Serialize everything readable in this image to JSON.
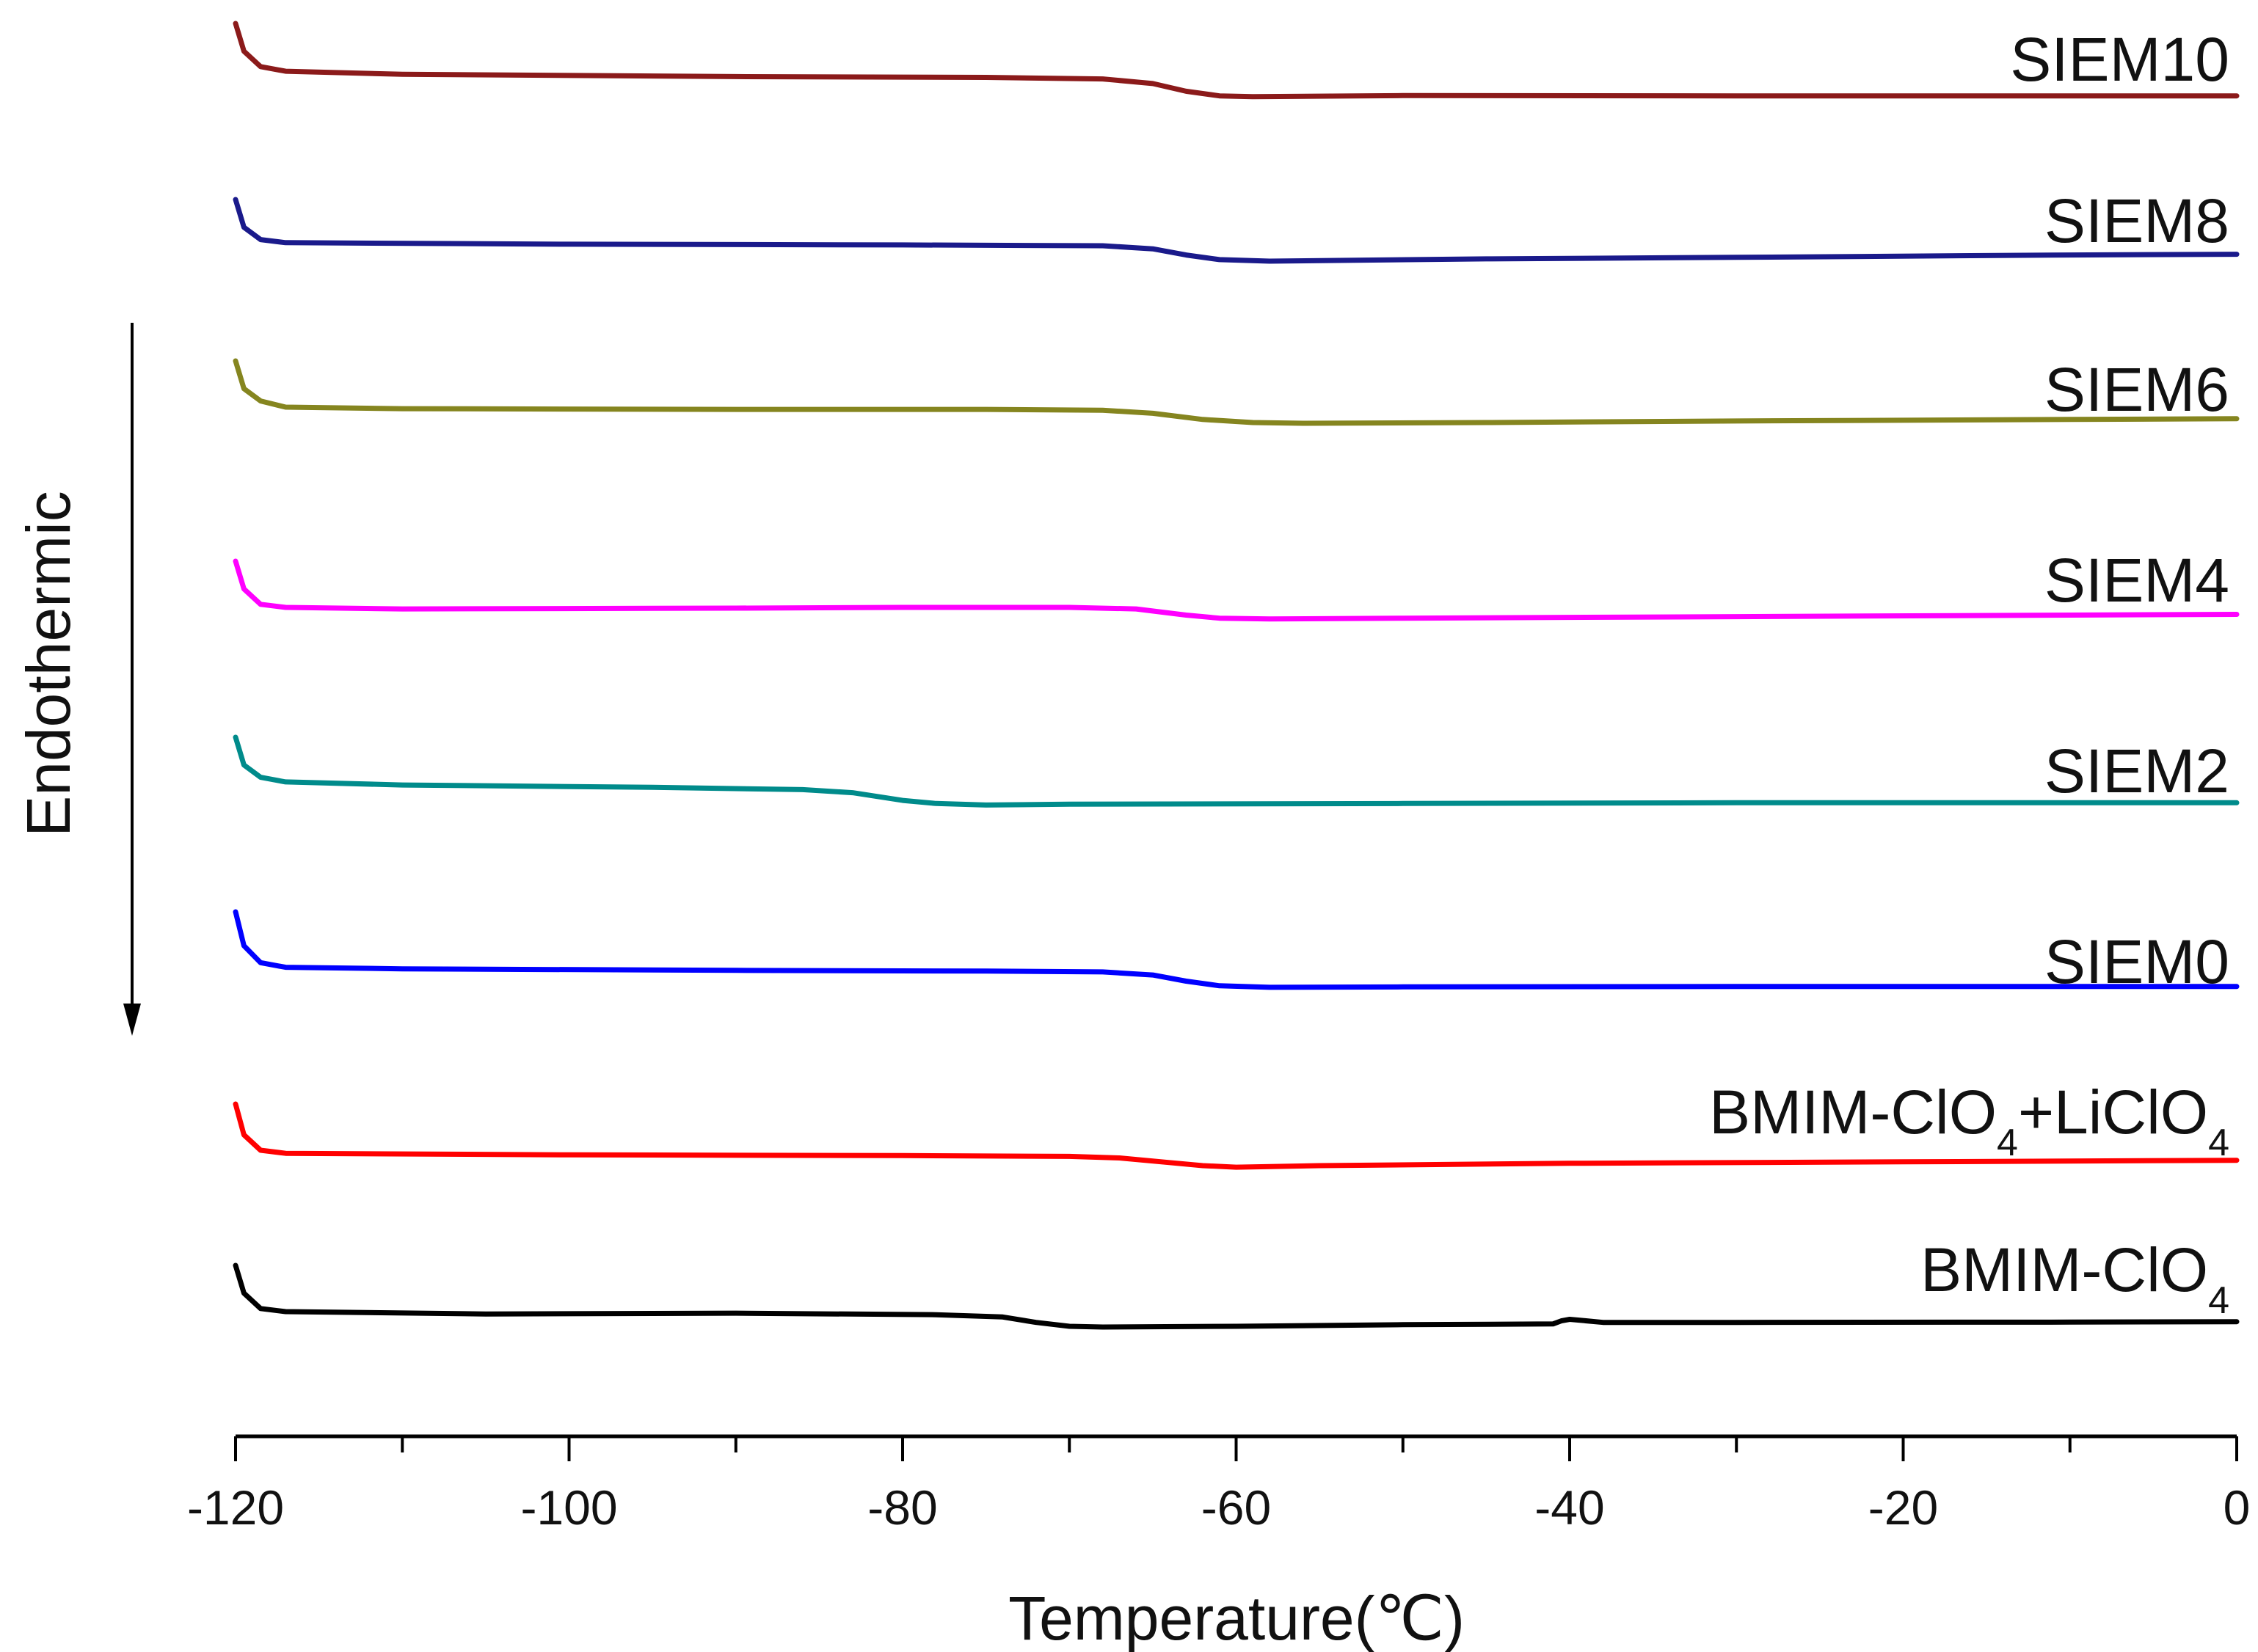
{
  "chart_data": {
    "type": "line",
    "title": "",
    "xlabel": "Temperature(℃)",
    "ylabel": "Endothermic",
    "xlim": [
      -120,
      0
    ],
    "x_ticks": [
      -120,
      -100,
      -80,
      -60,
      -40,
      -20,
      0
    ],
    "x_tick_labels": [
      "-120",
      "-100",
      "-80",
      "-60",
      "-40",
      "-20",
      "0"
    ],
    "y_axis_visible": false,
    "grid": false,
    "offset_stacked": true,
    "series": [
      {
        "name": "SIEM10",
        "label_main": "SIEM10",
        "label_sub": "",
        "label_tail": "",
        "label_tail_sub": "",
        "color": "#8B1A1A",
        "points": [
          [
            -120,
            0.0
          ],
          [
            -119.5,
            -0.18
          ],
          [
            -118.5,
            -0.28
          ],
          [
            -117,
            -0.31
          ],
          [
            -110,
            -0.33
          ],
          [
            -90,
            -0.345
          ],
          [
            -75,
            -0.35
          ],
          [
            -68,
            -0.36
          ],
          [
            -65,
            -0.39
          ],
          [
            -63,
            -0.44
          ],
          [
            -61,
            -0.47
          ],
          [
            -59,
            -0.475
          ],
          [
            -50,
            -0.468
          ],
          [
            -30,
            -0.47
          ],
          [
            -10,
            -0.47
          ],
          [
            0,
            -0.47
          ]
        ]
      },
      {
        "name": "SIEM8",
        "label_main": "SIEM8",
        "label_sub": "",
        "label_tail": "",
        "label_tail_sub": "",
        "color": "#1A1A8B",
        "points": [
          [
            -120,
            0.0
          ],
          [
            -119.5,
            -0.18
          ],
          [
            -118.5,
            -0.26
          ],
          [
            -117,
            -0.28
          ],
          [
            -100,
            -0.29
          ],
          [
            -80,
            -0.295
          ],
          [
            -68,
            -0.3
          ],
          [
            -65,
            -0.32
          ],
          [
            -63,
            -0.36
          ],
          [
            -61,
            -0.39
          ],
          [
            -58,
            -0.4
          ],
          [
            -45,
            -0.385
          ],
          [
            -30,
            -0.375
          ],
          [
            -10,
            -0.36
          ],
          [
            0,
            -0.355
          ]
        ]
      },
      {
        "name": "SIEM6",
        "label_main": "SIEM6",
        "label_sub": "",
        "label_tail": "",
        "label_tail_sub": "",
        "color": "#85851F",
        "points": [
          [
            -120,
            0.0
          ],
          [
            -119.5,
            -0.18
          ],
          [
            -118.5,
            -0.26
          ],
          [
            -117,
            -0.3
          ],
          [
            -110,
            -0.31
          ],
          [
            -90,
            -0.315
          ],
          [
            -75,
            -0.315
          ],
          [
            -68,
            -0.32
          ],
          [
            -65,
            -0.34
          ],
          [
            -62,
            -0.38
          ],
          [
            -59,
            -0.4
          ],
          [
            -56,
            -0.405
          ],
          [
            -45,
            -0.4
          ],
          [
            -30,
            -0.39
          ],
          [
            -10,
            -0.38
          ],
          [
            0,
            -0.375
          ]
        ]
      },
      {
        "name": "SIEM4",
        "label_main": "SIEM4",
        "label_sub": "",
        "label_tail": "",
        "label_tail_sub": "",
        "color": "#FF00FF",
        "points": [
          [
            -120,
            0.0
          ],
          [
            -119.5,
            -0.18
          ],
          [
            -118.5,
            -0.28
          ],
          [
            -117,
            -0.3
          ],
          [
            -110,
            -0.31
          ],
          [
            -90,
            -0.305
          ],
          [
            -80,
            -0.3
          ],
          [
            -70,
            -0.3
          ],
          [
            -66,
            -0.31
          ],
          [
            -63,
            -0.35
          ],
          [
            -61,
            -0.37
          ],
          [
            -58,
            -0.375
          ],
          [
            -50,
            -0.37
          ],
          [
            -30,
            -0.36
          ],
          [
            -10,
            -0.35
          ],
          [
            0,
            -0.345
          ]
        ]
      },
      {
        "name": "SIEM2",
        "label_main": "SIEM2",
        "label_sub": "",
        "label_tail": "",
        "label_tail_sub": "",
        "color": "#008B8B",
        "points": [
          [
            -120,
            0.0
          ],
          [
            -119.5,
            -0.18
          ],
          [
            -118.5,
            -0.26
          ],
          [
            -117,
            -0.29
          ],
          [
            -110,
            -0.31
          ],
          [
            -95,
            -0.325
          ],
          [
            -86,
            -0.34
          ],
          [
            -83,
            -0.36
          ],
          [
            -80,
            -0.41
          ],
          [
            -78,
            -0.43
          ],
          [
            -75,
            -0.44
          ],
          [
            -70,
            -0.435
          ],
          [
            -50,
            -0.43
          ],
          [
            -30,
            -0.425
          ],
          [
            0,
            -0.425
          ]
        ]
      },
      {
        "name": "SIEM0",
        "label_main": "SIEM0",
        "label_sub": "",
        "label_tail": "",
        "label_tail_sub": "",
        "color": "#0000FF",
        "points": [
          [
            -120,
            0.0
          ],
          [
            -119.5,
            -0.22
          ],
          [
            -118.5,
            -0.33
          ],
          [
            -117,
            -0.36
          ],
          [
            -110,
            -0.37
          ],
          [
            -90,
            -0.38
          ],
          [
            -75,
            -0.385
          ],
          [
            -68,
            -0.39
          ],
          [
            -65,
            -0.41
          ],
          [
            -63,
            -0.45
          ],
          [
            -61,
            -0.48
          ],
          [
            -58,
            -0.49
          ],
          [
            -50,
            -0.487
          ],
          [
            -30,
            -0.485
          ],
          [
            -10,
            -0.485
          ],
          [
            0,
            -0.485
          ]
        ]
      },
      {
        "name": "BMIM-ClO4+LiClO4",
        "label_main": "BMIM-ClO",
        "label_sub": "4",
        "label_tail": "+LiClO",
        "label_tail_sub": "4",
        "color": "#FF0000",
        "points": [
          [
            -120,
            0.0
          ],
          [
            -119.5,
            -0.2
          ],
          [
            -118.5,
            -0.3
          ],
          [
            -117,
            -0.32
          ],
          [
            -100,
            -0.33
          ],
          [
            -80,
            -0.335
          ],
          [
            -70,
            -0.34
          ],
          [
            -67,
            -0.35
          ],
          [
            -64,
            -0.38
          ],
          [
            -62,
            -0.4
          ],
          [
            -60,
            -0.41
          ],
          [
            -55,
            -0.4
          ],
          [
            -40,
            -0.385
          ],
          [
            -20,
            -0.375
          ],
          [
            0,
            -0.365
          ]
        ]
      },
      {
        "name": "BMIM-ClO4",
        "label_main": "BMIM-ClO",
        "label_sub": "4",
        "label_tail": "",
        "label_tail_sub": "",
        "color": "#000000",
        "points": [
          [
            -120,
            0.0
          ],
          [
            -119.5,
            -0.18
          ],
          [
            -118.5,
            -0.28
          ],
          [
            -117,
            -0.3
          ],
          [
            -105,
            -0.315
          ],
          [
            -90,
            -0.31
          ],
          [
            -78,
            -0.32
          ],
          [
            -74,
            -0.335
          ],
          [
            -72,
            -0.37
          ],
          [
            -70,
            -0.395
          ],
          [
            -68,
            -0.4
          ],
          [
            -60,
            -0.395
          ],
          [
            -50,
            -0.385
          ],
          [
            -41,
            -0.38
          ],
          [
            -40.5,
            -0.36
          ],
          [
            -40,
            -0.35
          ],
          [
            -39.5,
            -0.355
          ],
          [
            -38,
            -0.37
          ],
          [
            -30,
            -0.37
          ],
          [
            -10,
            -0.368
          ],
          [
            0,
            -0.365
          ]
        ]
      }
    ]
  }
}
